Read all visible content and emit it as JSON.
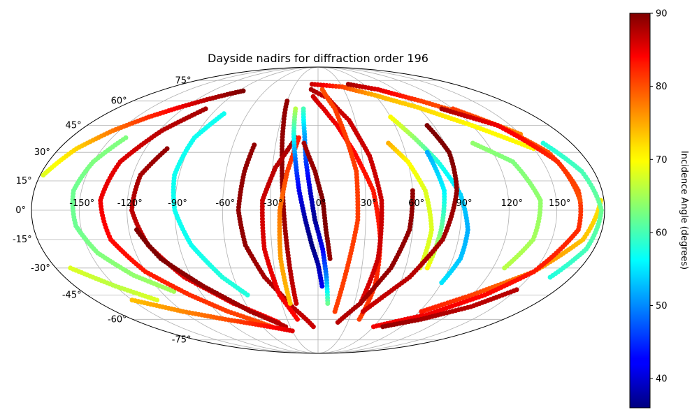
{
  "chart_data": {
    "type": "scatter",
    "projection": "mollweide",
    "title": "Dayside nadirs for diffraction order 196",
    "x_ticks": [
      "-150°",
      "-120°",
      "-90°",
      "-60°",
      "-30°",
      "0°",
      "30°",
      "60°",
      "90°",
      "120°",
      "150°"
    ],
    "x_tick_values": [
      -150,
      -120,
      -90,
      -60,
      -30,
      0,
      30,
      60,
      90,
      120,
      150
    ],
    "y_ticks": [
      "75°",
      "60°",
      "45°",
      "30°",
      "15°",
      "0°",
      "-15°",
      "-30°",
      "-45°",
      "-60°",
      "-75°"
    ],
    "y_tick_values": [
      75,
      60,
      45,
      30,
      15,
      0,
      -15,
      -30,
      -45,
      -60,
      -75
    ],
    "xlim": [
      -180,
      180
    ],
    "ylim": [
      -90,
      90
    ],
    "grid": true,
    "colormap": "jet",
    "colorbar": {
      "label": "Incidence Angle (degrees)",
      "range": [
        36,
        90
      ],
      "ticks": [
        "40",
        "50",
        "60",
        "70",
        "80",
        "90"
      ],
      "tick_values": [
        40,
        50,
        60,
        70,
        80,
        90
      ]
    },
    "series": [
      {
        "points": [
          [
            -178,
            18,
            68
          ],
          [
            -168,
            32,
            72
          ],
          [
            -155,
            42,
            77
          ],
          [
            -140,
            50,
            81
          ],
          [
            -125,
            56,
            84
          ],
          [
            -110,
            61,
            87
          ],
          [
            -95,
            65,
            89
          ],
          [
            -85,
            67,
            90
          ]
        ]
      },
      {
        "points": [
          [
            -140,
            38,
            63
          ],
          [
            -150,
            25,
            63
          ],
          [
            -155,
            10,
            62
          ],
          [
            -153,
            -8,
            62
          ],
          [
            -145,
            -22,
            63
          ],
          [
            -130,
            -34,
            64
          ],
          [
            -110,
            -43,
            65
          ]
        ]
      },
      {
        "points": [
          [
            -100,
            55,
            88
          ],
          [
            -118,
            42,
            87
          ],
          [
            -132,
            25,
            85
          ],
          [
            -137,
            5,
            84
          ],
          [
            -133,
            -15,
            83
          ],
          [
            -120,
            -32,
            82
          ],
          [
            -100,
            -45,
            81
          ],
          [
            -80,
            -55,
            80
          ],
          [
            -50,
            -65,
            79
          ]
        ]
      },
      {
        "points": [
          [
            -105,
            32,
            89
          ],
          [
            -115,
            18,
            88
          ],
          [
            -117,
            0,
            87
          ],
          [
            -110,
            -18,
            86
          ],
          [
            -95,
            -35,
            85
          ],
          [
            -70,
            -50,
            84
          ],
          [
            -40,
            -62,
            83
          ]
        ]
      },
      {
        "points": [
          [
            -115,
            -10,
            90
          ],
          [
            -105,
            -25,
            90
          ],
          [
            -85,
            -40,
            89
          ],
          [
            -60,
            -55,
            88
          ],
          [
            -35,
            -65,
            87
          ]
        ]
      },
      {
        "points": [
          [
            -150,
            -48,
            73
          ],
          [
            -120,
            -55,
            76
          ],
          [
            -90,
            -60,
            79
          ],
          [
            -60,
            -64,
            82
          ],
          [
            -30,
            -68,
            85
          ]
        ]
      },
      {
        "points": [
          [
            -80,
            52,
            57
          ],
          [
            -90,
            38,
            57
          ],
          [
            -93,
            18,
            57
          ],
          [
            -90,
            0,
            57
          ],
          [
            -82,
            -18,
            57
          ],
          [
            -68,
            -35,
            58
          ],
          [
            -55,
            -45,
            58
          ]
        ]
      },
      {
        "points": [
          [
            -45,
            34,
            89
          ],
          [
            -48,
            20,
            89
          ],
          [
            -50,
            0,
            89
          ],
          [
            -47,
            -18,
            89
          ],
          [
            -38,
            -35,
            88
          ],
          [
            -22,
            -52,
            87
          ],
          [
            -5,
            -65,
            86
          ]
        ]
      },
      {
        "points": [
          [
            -30,
            60,
            89
          ],
          [
            -27,
            45,
            89
          ],
          [
            -24,
            25,
            89
          ],
          [
            -22,
            5,
            89
          ],
          [
            -20,
            -20,
            88
          ],
          [
            -18,
            -50,
            86
          ]
        ]
      },
      {
        "points": [
          [
            -16,
            38,
            88
          ],
          [
            -28,
            22,
            87
          ],
          [
            -35,
            5,
            86
          ],
          [
            -35,
            -20,
            85
          ],
          [
            -30,
            -45,
            84
          ],
          [
            -20,
            -60,
            83
          ]
        ]
      },
      {
        "points": [
          [
            -14,
            38,
            82
          ],
          [
            -20,
            20,
            80
          ],
          [
            -24,
            0,
            77
          ],
          [
            -25,
            -25,
            75
          ],
          [
            -23,
            -50,
            73
          ]
        ]
      },
      {
        "points": [
          [
            -20,
            55,
            66
          ],
          [
            -18,
            40,
            58
          ],
          [
            -15,
            25,
            48
          ],
          [
            -12,
            10,
            42
          ],
          [
            -8,
            -5,
            38
          ],
          [
            -4,
            -18,
            36
          ],
          [
            0,
            -28,
            38
          ],
          [
            3,
            -40,
            42
          ]
        ]
      },
      {
        "points": [
          [
            -13,
            55,
            60
          ],
          [
            -10,
            40,
            52
          ],
          [
            -8,
            25,
            46
          ],
          [
            -5,
            10,
            40
          ],
          [
            -2,
            -5,
            37
          ],
          [
            3,
            -20,
            42
          ],
          [
            6,
            -35,
            50
          ],
          [
            8,
            -50,
            62
          ]
        ]
      },
      {
        "points": [
          [
            -10,
            35,
            88
          ],
          [
            -2,
            20,
            89
          ],
          [
            3,
            5,
            90
          ],
          [
            5,
            -10,
            90
          ],
          [
            8,
            -25,
            89
          ]
        ]
      },
      {
        "points": [
          [
            -5,
            63,
            86
          ],
          [
            5,
            55,
            85
          ],
          [
            15,
            45,
            84
          ],
          [
            25,
            30,
            83
          ],
          [
            35,
            10,
            82
          ],
          [
            40,
            -15,
            82
          ],
          [
            42,
            -40,
            81
          ],
          [
            40,
            -60,
            80
          ]
        ]
      },
      {
        "points": [
          [
            -8,
            68,
            88
          ],
          [
            10,
            62,
            86
          ],
          [
            25,
            48,
            86
          ],
          [
            35,
            28,
            86
          ],
          [
            40,
            5,
            86
          ],
          [
            40,
            -25,
            86
          ],
          [
            35,
            -50,
            85
          ]
        ]
      },
      {
        "points": [
          [
            5,
            68,
            79
          ],
          [
            15,
            55,
            80
          ],
          [
            20,
            40,
            80
          ],
          [
            25,
            20,
            80
          ],
          [
            25,
            -5,
            80
          ],
          [
            20,
            -30,
            80
          ],
          [
            15,
            -55,
            80
          ]
        ]
      },
      {
        "points": [
          [
            -8,
            72,
            86
          ],
          [
            30,
            70,
            80
          ],
          [
            60,
            64,
            74
          ],
          [
            90,
            56,
            72
          ],
          [
            120,
            45,
            70
          ],
          [
            150,
            32,
            70
          ]
        ]
      },
      {
        "points": [
          [
            40,
            72,
            88
          ],
          [
            70,
            68,
            85
          ],
          [
            100,
            60,
            80
          ],
          [
            130,
            50,
            78
          ],
          [
            150,
            40,
            76
          ]
        ]
      },
      {
        "points": [
          [
            60,
            50,
            70
          ],
          [
            70,
            38,
            64
          ],
          [
            80,
            25,
            58
          ],
          [
            90,
            8,
            54
          ],
          [
            95,
            -10,
            52
          ],
          [
            95,
            -25,
            53
          ],
          [
            90,
            -38,
            55
          ]
        ]
      },
      {
        "points": [
          [
            50,
            35,
            74
          ],
          [
            60,
            25,
            70
          ],
          [
            68,
            10,
            68
          ],
          [
            72,
            -10,
            68
          ],
          [
            70,
            -30,
            68
          ]
        ]
      },
      {
        "points": [
          [
            75,
            -30,
            70
          ],
          [
            78,
            -10,
            62
          ],
          [
            80,
            10,
            56
          ],
          [
            75,
            30,
            52
          ]
        ]
      },
      {
        "points": [
          [
            60,
            10,
            89
          ],
          [
            58,
            -10,
            89
          ],
          [
            50,
            -30,
            89
          ],
          [
            35,
            -50,
            88
          ],
          [
            20,
            -62,
            87
          ]
        ]
      },
      {
        "points": [
          [
            85,
            45,
            90
          ],
          [
            90,
            30,
            90
          ],
          [
            88,
            10,
            89
          ],
          [
            80,
            -15,
            88
          ],
          [
            65,
            -35,
            87
          ],
          [
            40,
            -55,
            86
          ]
        ]
      },
      {
        "points": [
          [
            92,
            -55,
            82
          ],
          [
            120,
            -45,
            80
          ],
          [
            150,
            -32,
            76
          ],
          [
            170,
            -15,
            73
          ],
          [
            178,
            5,
            71
          ]
        ]
      },
      {
        "points": [
          [
            60,
            -65,
            84
          ],
          [
            100,
            -57,
            84
          ],
          [
            130,
            -45,
            83
          ],
          [
            150,
            -32,
            82
          ],
          [
            165,
            -10,
            81
          ],
          [
            165,
            10,
            80
          ],
          [
            158,
            30,
            79
          ],
          [
            140,
            45,
            79
          ],
          [
            120,
            55,
            80
          ]
        ]
      },
      {
        "points": [
          [
            110,
            55,
            88
          ],
          [
            140,
            45,
            84
          ],
          [
            160,
            25,
            81
          ],
          [
            165,
            5,
            79
          ]
        ]
      },
      {
        "points": [
          [
            110,
            35,
            64
          ],
          [
            130,
            25,
            63
          ],
          [
            140,
            5,
            64
          ],
          [
            138,
            -15,
            65
          ],
          [
            128,
            -30,
            66
          ]
        ]
      },
      {
        "points": [
          [
            160,
            35,
            58
          ],
          [
            172,
            20,
            60
          ],
          [
            178,
            0,
            62
          ],
          [
            175,
            -20,
            60
          ],
          [
            165,
            -35,
            58
          ]
        ]
      },
      {
        "points": [
          [
            70,
            -65,
            89
          ],
          [
            100,
            -60,
            88
          ],
          [
            130,
            -52,
            87
          ],
          [
            150,
            -42,
            87
          ]
        ]
      },
      {
        "points": [
          [
            -170,
            -30,
            68
          ],
          [
            -150,
            -40,
            66
          ],
          [
            -130,
            -48,
            68
          ]
        ]
      }
    ]
  }
}
